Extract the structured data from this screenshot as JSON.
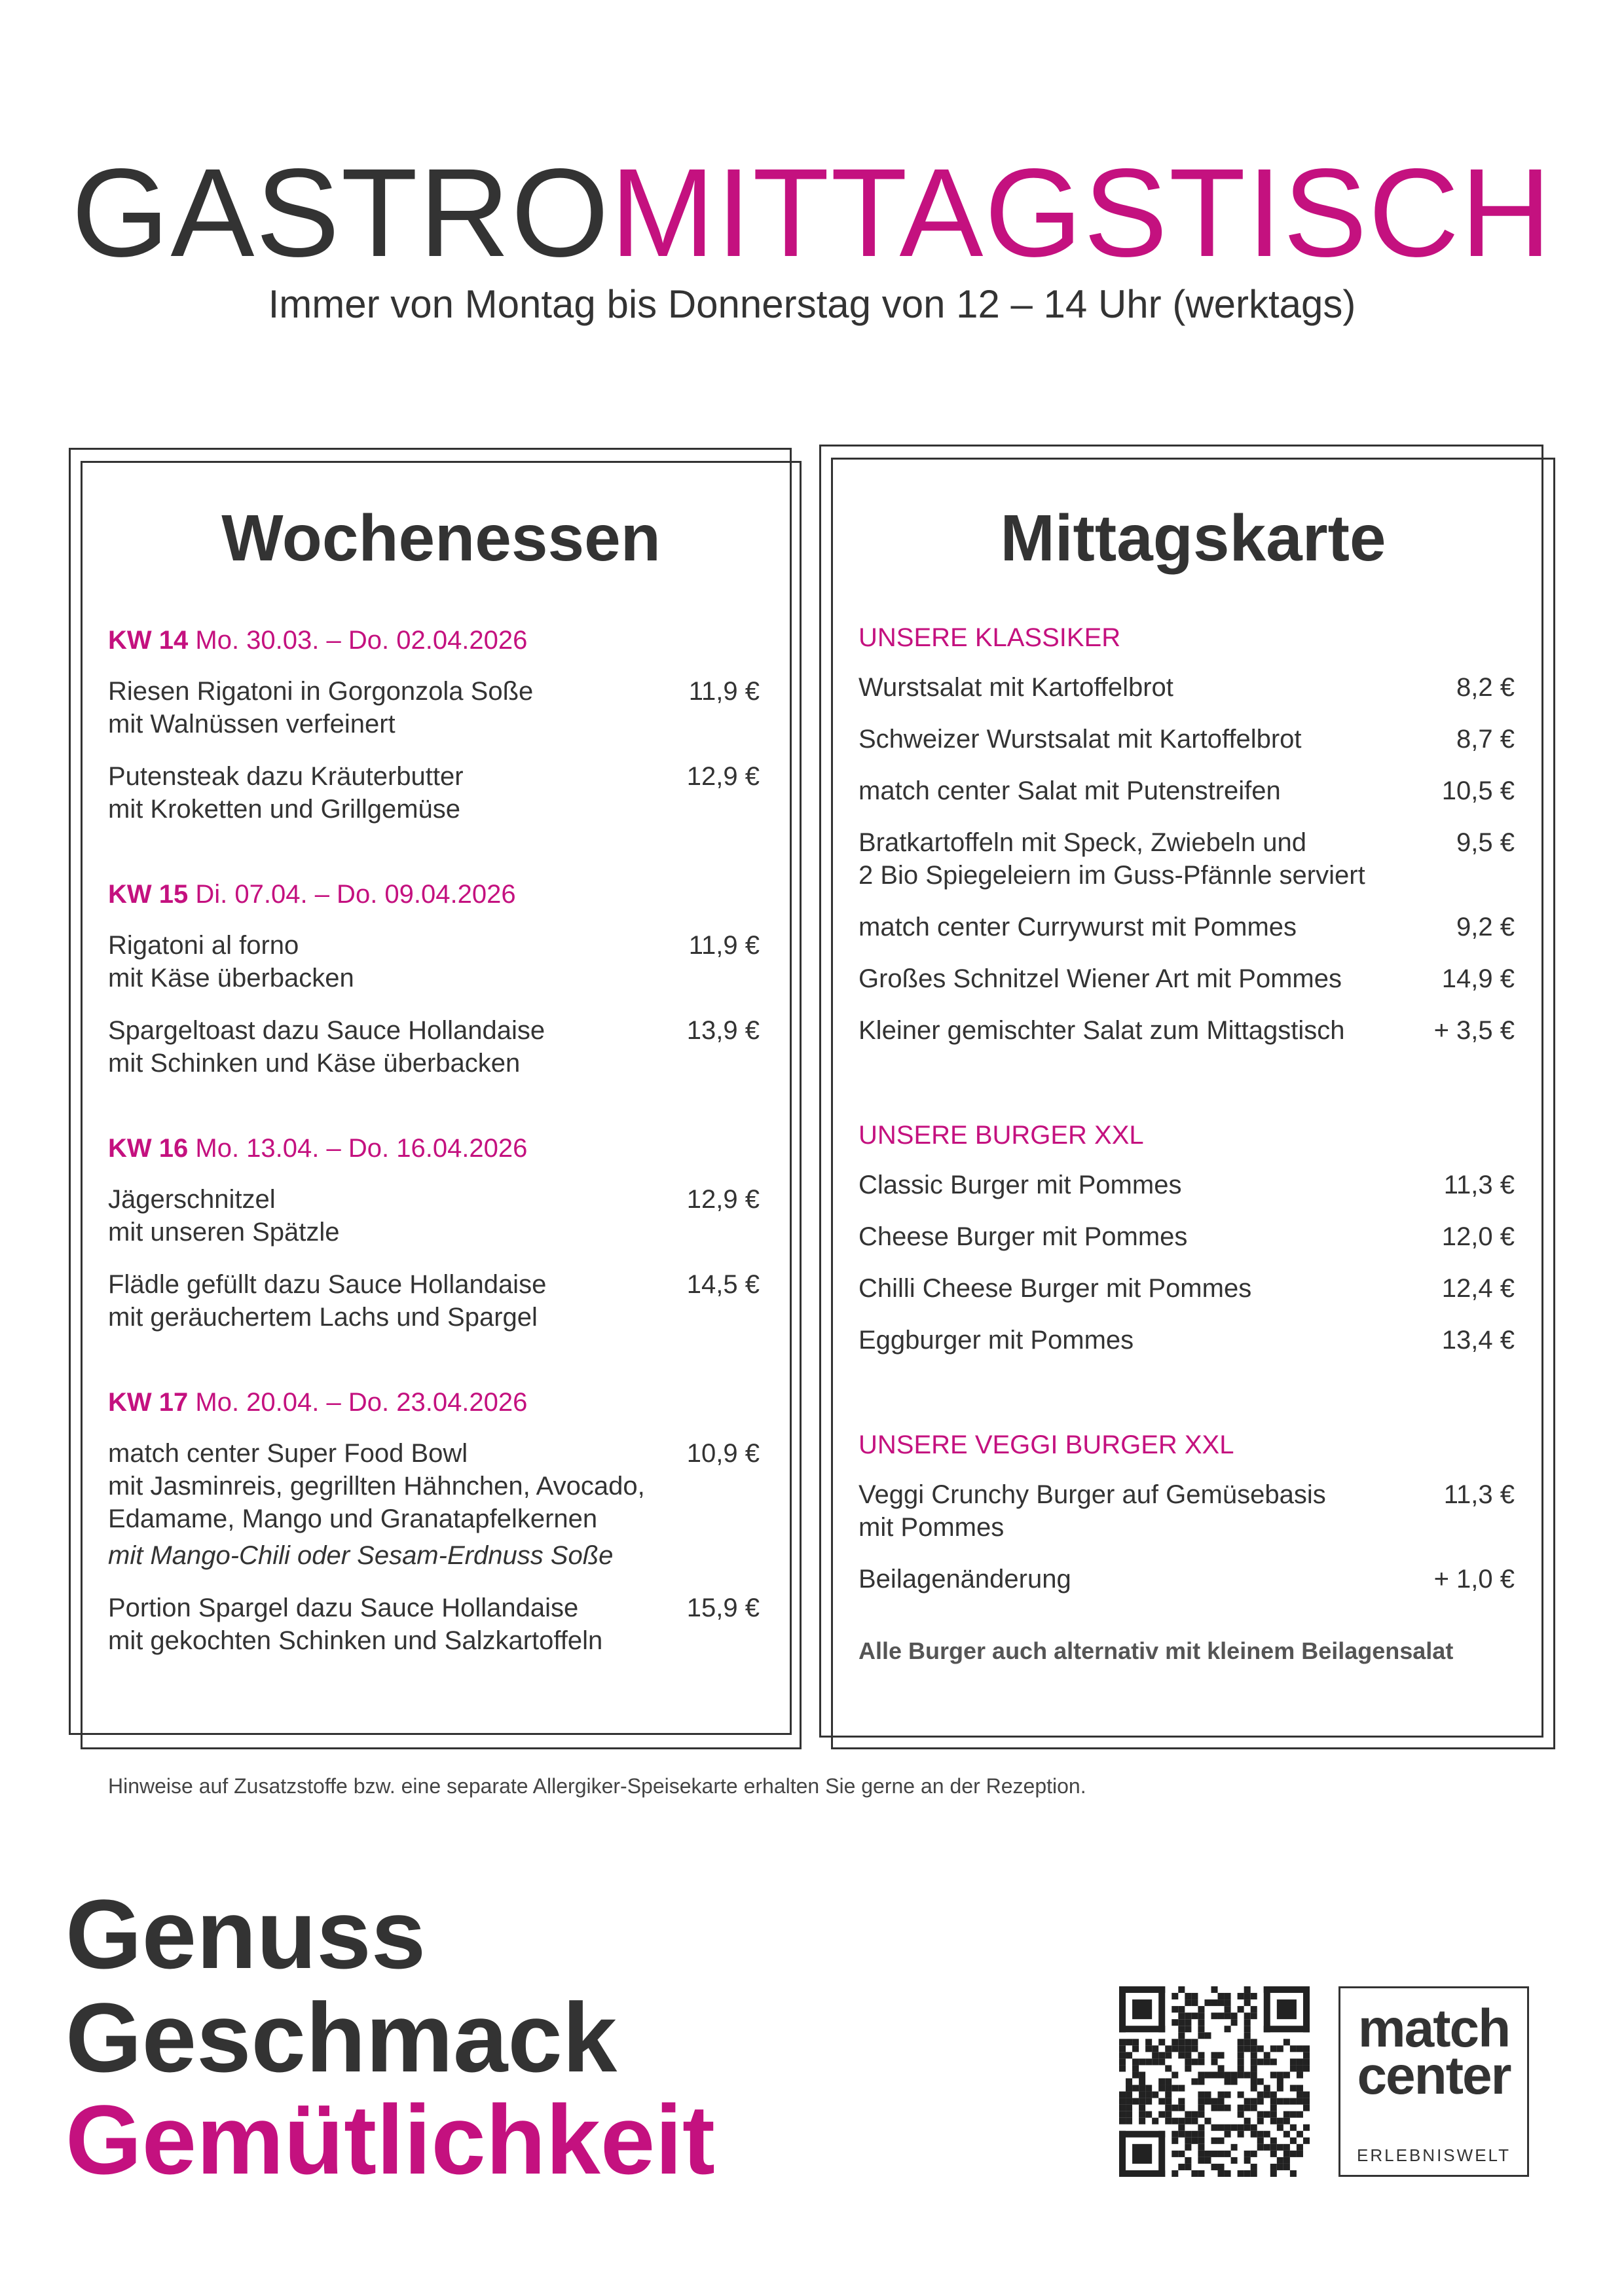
{
  "header": {
    "title_part1": "GASTRO",
    "title_part2": "MITTAGSTISCH",
    "subtitle": "Immer von Montag bis Donnerstag von 12 – 14 Uhr (werktags)"
  },
  "weekly": {
    "heading": "Wochenessen",
    "weeks": [
      {
        "kw": "KW 14",
        "dates": "Mo. 30.03. – Do. 02.04.2026",
        "items": [
          {
            "name": "Riesen Rigatoni in Gorgonzola Soße",
            "description": [
              "mit Walnüssen verfeinert"
            ],
            "price": "11,9 €"
          },
          {
            "name": "Putensteak dazu Kräuterbutter",
            "description": [
              "mit Kroketten und Grillgemüse"
            ],
            "price": "12,9 €"
          }
        ]
      },
      {
        "kw": "KW 15",
        "dates": "Di. 07.04. – Do. 09.04.2026",
        "items": [
          {
            "name": "Rigatoni al forno",
            "description": [
              "mit Käse überbacken"
            ],
            "price": "11,9 €"
          },
          {
            "name": "Spargeltoast dazu Sauce Hollandaise",
            "description": [
              "mit Schinken und Käse überbacken"
            ],
            "price": "13,9 €"
          }
        ]
      },
      {
        "kw": "KW 16",
        "dates": "Mo. 13.04. – Do. 16.04.2026",
        "items": [
          {
            "name": "Jägerschnitzel",
            "description": [
              "mit unseren Spätzle"
            ],
            "price": "12,9 €"
          },
          {
            "name": "Flädle gefüllt dazu Sauce Hollandaise",
            "description": [
              "mit geräuchertem Lachs und Spargel"
            ],
            "price": "14,5 €"
          }
        ]
      },
      {
        "kw": "KW 17",
        "dates": "Mo. 20.04. – Do. 23.04.2026",
        "items": [
          {
            "name": "match center Super Food Bowl",
            "description": [
              "mit Jasminreis, gegrillten Hähnchen, Avocado,",
              "Edamame, Mango und Granatapfelkernen"
            ],
            "note": "mit Mango-Chili oder Sesam-Erdnuss Soße",
            "price": "10,9 €"
          },
          {
            "name": "Portion Spargel dazu Sauce Hollandaise",
            "description": [
              "mit gekochten Schinken und Salzkartoffeln"
            ],
            "price": "15,9 €"
          }
        ]
      }
    ]
  },
  "lunch_menu": {
    "heading": "Mittagskarte",
    "sections": [
      {
        "title": "UNSERE KLASSIKER",
        "items": [
          {
            "name": [
              "Wurstsalat mit Kartoffelbrot"
            ],
            "price": "8,2 €"
          },
          {
            "name": [
              "Schweizer Wurstsalat mit Kartoffelbrot"
            ],
            "price": "8,7 €"
          },
          {
            "name": [
              "match center Salat mit Putenstreifen"
            ],
            "price": "10,5 €"
          },
          {
            "name": [
              "Bratkartoffeln mit Speck, Zwiebeln und",
              "2 Bio Spiegeleiern im Guss-Pfännle serviert"
            ],
            "price": "9,5 €"
          },
          {
            "name": [
              "match center Currywurst mit Pommes"
            ],
            "price": "9,2 €"
          },
          {
            "name": [
              "Großes Schnitzel Wiener Art mit Pommes"
            ],
            "price": "14,9 €"
          },
          {
            "name": [
              "Kleiner gemischter Salat zum Mittagstisch"
            ],
            "price": "+ 3,5 €"
          }
        ]
      },
      {
        "title": "UNSERE BURGER XXL",
        "items": [
          {
            "name": [
              "Classic Burger mit Pommes"
            ],
            "price": "11,3 €"
          },
          {
            "name": [
              "Cheese Burger mit Pommes"
            ],
            "price": "12,0 €"
          },
          {
            "name": [
              "Chilli Cheese Burger mit Pommes"
            ],
            "price": "12,4 €"
          },
          {
            "name": [
              "Eggburger mit Pommes"
            ],
            "price": "13,4 €"
          }
        ]
      },
      {
        "title": "UNSERE VEGGI BURGER XXL",
        "items": [
          {
            "name": [
              "Veggi Crunchy Burger auf Gemüsebasis",
              "mit Pommes"
            ],
            "price": "11,3 €"
          },
          {
            "name": [
              "Beilagenänderung"
            ],
            "price": "+ 1,0 €"
          }
        ]
      }
    ],
    "note": "Alle Burger auch alternativ mit kleinem Beilagensalat"
  },
  "footnote": "Hinweise auf Zusatzstoffe bzw. eine separate Allergiker-Speisekarte erhalten Sie gerne an der Rezeption.",
  "slogan": [
    "Genuss",
    "Geschmack",
    "Gemütlichkeit"
  ],
  "logo": {
    "line1": "match",
    "line2": "center",
    "tagline": "ERLEBNISWELT"
  }
}
